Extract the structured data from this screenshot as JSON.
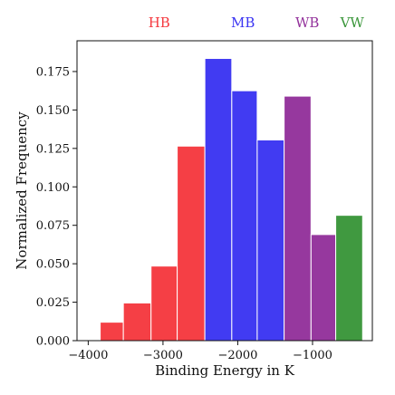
{
  "chart_data": {
    "type": "bar",
    "xlabel": "Binding Energy in K",
    "ylabel": "Normalized Frequency",
    "xlim": [
      -4150,
      -200
    ],
    "ylim": [
      0,
      0.195
    ],
    "xticks": [
      {
        "value": -4000,
        "label": "−4000"
      },
      {
        "value": -3000,
        "label": "−3000"
      },
      {
        "value": -2000,
        "label": "−2000"
      },
      {
        "value": -1000,
        "label": "−1000"
      }
    ],
    "yticks": [
      {
        "value": 0.0,
        "label": "0.000"
      },
      {
        "value": 0.025,
        "label": "0.025"
      },
      {
        "value": 0.05,
        "label": "0.050"
      },
      {
        "value": 0.075,
        "label": "0.075"
      },
      {
        "value": 0.1,
        "label": "0.100"
      },
      {
        "value": 0.125,
        "label": "0.125"
      },
      {
        "value": 0.15,
        "label": "0.150"
      },
      {
        "value": 0.175,
        "label": "0.175"
      }
    ],
    "grid": false,
    "groups": [
      {
        "name": "HB",
        "color": "#f5393f",
        "label_center": -3050
      },
      {
        "name": "MB",
        "color": "#3b35f2",
        "label_center": -1930
      },
      {
        "name": "WB",
        "color": "#93329b",
        "label_center": -1070
      },
      {
        "name": "VW",
        "color": "#3a963a",
        "label_center": -470
      }
    ],
    "bins": [
      {
        "x0": -3840,
        "x1": -3530,
        "value": 0.012,
        "group": "HB"
      },
      {
        "x0": -3530,
        "x1": -3160,
        "value": 0.0245,
        "group": "HB"
      },
      {
        "x0": -3160,
        "x1": -2810,
        "value": 0.0485,
        "group": "HB"
      },
      {
        "x0": -2810,
        "x1": -2440,
        "value": 0.1265,
        "group": "HB"
      },
      {
        "x0": -2440,
        "x1": -2080,
        "value": 0.1835,
        "group": "MB"
      },
      {
        "x0": -2080,
        "x1": -1740,
        "value": 0.1625,
        "group": "MB"
      },
      {
        "x0": -1740,
        "x1": -1380,
        "value": 0.1305,
        "group": "MB"
      },
      {
        "x0": -1380,
        "x1": -1020,
        "value": 0.159,
        "group": "WB"
      },
      {
        "x0": -1020,
        "x1": -690,
        "value": 0.069,
        "group": "WB"
      },
      {
        "x0": -690,
        "x1": -330,
        "value": 0.0815,
        "group": "VW"
      }
    ]
  }
}
